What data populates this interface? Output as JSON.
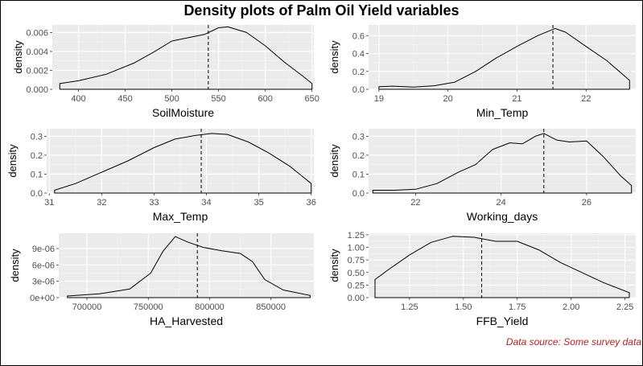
{
  "title": "Density plots of Palm Oil Yield variables",
  "source_note": "Data source: Some survey data",
  "chart_data": [
    {
      "type": "area",
      "xlabel": "SoilMoisture",
      "ylabel": "density",
      "xlim": [
        372,
        652
      ],
      "ylim": [
        0,
        0.0068
      ],
      "xticks": [
        400,
        450,
        500,
        550,
        600,
        650
      ],
      "xtick_labels": [
        "400",
        "450",
        "500",
        "550",
        "600",
        "650"
      ],
      "yticks": [
        0,
        0.002,
        0.004,
        0.006
      ],
      "ytick_labels": [
        "0.000",
        "0.002",
        "0.004",
        "0.006"
      ],
      "mean_line": 539,
      "points": [
        [
          380,
          0.0006
        ],
        [
          400,
          0.0009
        ],
        [
          430,
          0.0016
        ],
        [
          460,
          0.0028
        ],
        [
          480,
          0.0039
        ],
        [
          500,
          0.0051
        ],
        [
          520,
          0.0055
        ],
        [
          535,
          0.0058
        ],
        [
          550,
          0.0065
        ],
        [
          560,
          0.0066
        ],
        [
          580,
          0.006
        ],
        [
          600,
          0.0046
        ],
        [
          620,
          0.0029
        ],
        [
          640,
          0.0014
        ],
        [
          650,
          0.0006
        ]
      ]
    },
    {
      "type": "area",
      "xlabel": "Min_Temp",
      "ylabel": "density",
      "xlim": [
        18.85,
        22.72
      ],
      "ylim": [
        0,
        0.72
      ],
      "xticks": [
        19,
        20,
        21,
        22
      ],
      "xtick_labels": [
        "19",
        "20",
        "21",
        "22"
      ],
      "yticks": [
        0,
        0.2,
        0.4,
        0.6
      ],
      "ytick_labels": [
        "0.0",
        "0.2",
        "0.4",
        "0.6"
      ],
      "mean_line": 21.52,
      "points": [
        [
          19.0,
          0.03
        ],
        [
          19.2,
          0.035
        ],
        [
          19.5,
          0.025
        ],
        [
          19.8,
          0.04
        ],
        [
          20.1,
          0.08
        ],
        [
          20.4,
          0.2
        ],
        [
          20.7,
          0.35
        ],
        [
          21.0,
          0.48
        ],
        [
          21.3,
          0.6
        ],
        [
          21.55,
          0.68
        ],
        [
          21.7,
          0.64
        ],
        [
          22.0,
          0.48
        ],
        [
          22.3,
          0.32
        ],
        [
          22.63,
          0.1
        ]
      ]
    },
    {
      "type": "area",
      "xlabel": "Max_Temp",
      "ylabel": "density",
      "xlim": [
        30.95,
        36.05
      ],
      "ylim": [
        0,
        0.34
      ],
      "xticks": [
        31,
        32,
        33,
        34,
        35,
        36
      ],
      "xtick_labels": [
        "31",
        "32",
        "33",
        "34",
        "35",
        "36"
      ],
      "yticks": [
        0,
        0.1,
        0.2,
        0.3
      ],
      "ytick_labels": [
        "0.0",
        "0.1",
        "0.2",
        "0.3"
      ],
      "mean_line": 33.9,
      "points": [
        [
          31.1,
          0.015
        ],
        [
          31.5,
          0.05
        ],
        [
          32.0,
          0.11
        ],
        [
          32.5,
          0.17
        ],
        [
          33.0,
          0.24
        ],
        [
          33.4,
          0.285
        ],
        [
          33.8,
          0.305
        ],
        [
          34.1,
          0.315
        ],
        [
          34.4,
          0.31
        ],
        [
          34.8,
          0.27
        ],
        [
          35.2,
          0.21
        ],
        [
          35.6,
          0.14
        ],
        [
          36.0,
          0.05
        ]
      ]
    },
    {
      "type": "area",
      "xlabel": "Working_days",
      "ylabel": "density",
      "xlim": [
        20.9,
        27.15
      ],
      "ylim": [
        0,
        0.34
      ],
      "xticks": [
        22,
        24,
        26
      ],
      "xtick_labels": [
        "22",
        "24",
        "26"
      ],
      "yticks": [
        0,
        0.1,
        0.2,
        0.3
      ],
      "ytick_labels": [
        "0.0",
        "0.1",
        "0.2",
        "0.3"
      ],
      "mean_line": 25.0,
      "points": [
        [
          21.0,
          0.015
        ],
        [
          21.5,
          0.015
        ],
        [
          22.0,
          0.02
        ],
        [
          22.5,
          0.05
        ],
        [
          23.0,
          0.11
        ],
        [
          23.4,
          0.15
        ],
        [
          23.8,
          0.23
        ],
        [
          24.2,
          0.265
        ],
        [
          24.5,
          0.26
        ],
        [
          24.8,
          0.3
        ],
        [
          25.0,
          0.315
        ],
        [
          25.3,
          0.28
        ],
        [
          25.6,
          0.27
        ],
        [
          26.0,
          0.275
        ],
        [
          26.4,
          0.19
        ],
        [
          26.8,
          0.09
        ],
        [
          27.05,
          0.04
        ]
      ]
    },
    {
      "type": "area",
      "xlabel": "HA_Harvested",
      "ylabel": "density",
      "xlim": [
        677000,
        885000
      ],
      "ylim": [
        0,
        1.18e-05
      ],
      "xticks": [
        700000,
        750000,
        800000,
        850000
      ],
      "xtick_labels": [
        "700000",
        "750000",
        "800000",
        "850000"
      ],
      "yticks": [
        0,
        3e-06,
        6e-06,
        9e-06
      ],
      "ytick_labels": [
        "0e+00",
        "3e-06",
        "6e-06",
        "9e-06"
      ],
      "mean_line": 790000,
      "points": [
        [
          684000,
          3e-07
        ],
        [
          710000,
          7e-07
        ],
        [
          735000,
          1.6e-06
        ],
        [
          752000,
          4.5e-06
        ],
        [
          762000,
          8.5e-06
        ],
        [
          772000,
          1.12e-05
        ],
        [
          782000,
          1.02e-05
        ],
        [
          795000,
          9.2e-06
        ],
        [
          810000,
          8.6e-06
        ],
        [
          825000,
          8.1e-06
        ],
        [
          835000,
          6.6e-06
        ],
        [
          845000,
          3.3e-06
        ],
        [
          860000,
          1.4e-06
        ],
        [
          882000,
          4e-07
        ]
      ]
    },
    {
      "type": "area",
      "xlabel": "FFB_Yield",
      "ylabel": "density",
      "xlim": [
        1.06,
        2.3
      ],
      "ylim": [
        0,
        1.28
      ],
      "xticks": [
        1.25,
        1.5,
        1.75,
        2.0,
        2.25
      ],
      "xtick_labels": [
        "1.25",
        "1.50",
        "1.75",
        "2.00",
        "2.25"
      ],
      "yticks": [
        0,
        0.25,
        0.5,
        0.75,
        1.0,
        1.25
      ],
      "ytick_labels": [
        "0.00",
        "0.25",
        "0.50",
        "0.75",
        "1.00",
        "1.25"
      ],
      "mean_line": 1.585,
      "points": [
        [
          1.09,
          0.36
        ],
        [
          1.15,
          0.55
        ],
        [
          1.25,
          0.85
        ],
        [
          1.35,
          1.1
        ],
        [
          1.45,
          1.22
        ],
        [
          1.55,
          1.2
        ],
        [
          1.65,
          1.12
        ],
        [
          1.75,
          1.12
        ],
        [
          1.85,
          0.95
        ],
        [
          1.95,
          0.7
        ],
        [
          2.05,
          0.5
        ],
        [
          2.15,
          0.3
        ],
        [
          2.27,
          0.1
        ]
      ]
    }
  ]
}
